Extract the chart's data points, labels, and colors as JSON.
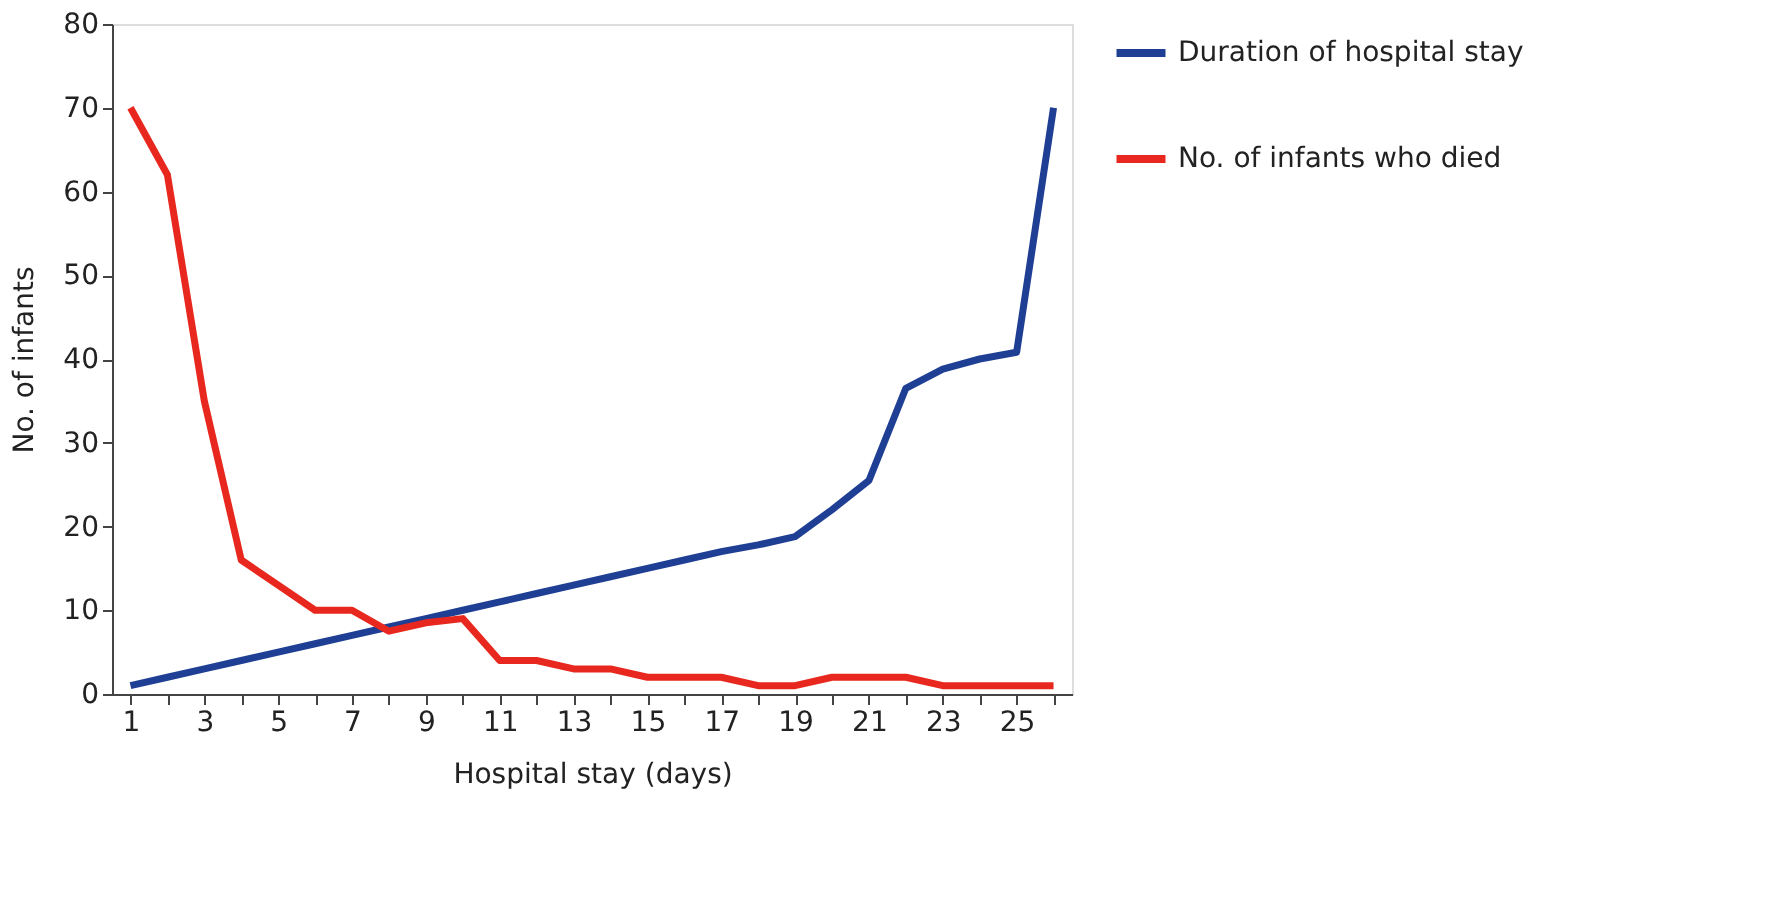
{
  "chart_data": {
    "type": "line",
    "xlabel": "Hospital stay (days)",
    "ylabel": "No. of infants",
    "x": [
      1,
      2,
      3,
      4,
      5,
      6,
      7,
      8,
      9,
      10,
      11,
      12,
      13,
      14,
      15,
      16,
      17,
      18,
      19,
      20,
      21,
      22,
      23,
      24,
      25,
      26
    ],
    "xlim": [
      0.5,
      26.5
    ],
    "xticks": [
      1,
      {
        "value": 2,
        "label": null
      },
      3,
      {
        "value": 4,
        "label": null
      },
      5,
      {
        "value": 6,
        "label": null
      },
      7,
      {
        "value": 8,
        "label": null
      },
      9,
      {
        "value": 10,
        "label": null
      },
      11,
      {
        "value": 12,
        "label": null
      },
      13,
      {
        "value": 14,
        "label": null
      },
      15,
      {
        "value": 16,
        "label": null
      },
      17,
      {
        "value": 18,
        "label": null
      },
      19,
      {
        "value": 20,
        "label": null
      },
      21,
      {
        "value": 22,
        "label": null
      },
      23,
      {
        "value": 24,
        "label": null
      },
      25,
      {
        "value": 26,
        "label": null
      }
    ],
    "ylim": [
      0,
      80
    ],
    "yticks": [
      0,
      10,
      20,
      30,
      40,
      50,
      60,
      70,
      80
    ],
    "series": [
      {
        "name": "Duration of hospital stay",
        "color": "#1f3f94",
        "values": [
          1,
          2,
          3,
          4,
          5,
          6,
          7,
          8,
          9,
          10,
          11,
          12,
          13,
          14,
          15,
          16,
          17,
          17.8,
          18.8,
          22,
          25.5,
          36.5,
          38.8,
          40,
          40.8,
          70
        ]
      },
      {
        "name": "No. of infants who died",
        "color": "#e8281e",
        "values": [
          70,
          62,
          35,
          16,
          13,
          10,
          10,
          7.5,
          8.5,
          9,
          4,
          4,
          3,
          3,
          2,
          2,
          2,
          1,
          1,
          2,
          2,
          2,
          1,
          1,
          1,
          1
        ]
      }
    ],
    "legend": "right",
    "grid": false,
    "marker": "none",
    "line_style": "solid"
  }
}
